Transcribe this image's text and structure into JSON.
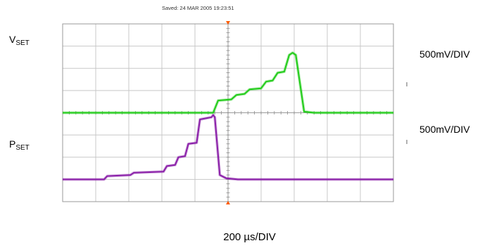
{
  "header": {
    "saved_text": "Saved:  24 MAR 2005  19:23:51"
  },
  "labels": {
    "vset_main": "V",
    "vset_sub": "SET",
    "pset_main": "P",
    "pset_sub": "SET",
    "v_scale": "500mV/DIV",
    "p_scale": "500mV/DIV",
    "time_scale": "200 µs/DIV"
  },
  "colors": {
    "vset_trace": "#22cc1a",
    "pset_trace": "#8a1fa8",
    "grid": "#c8c8c8",
    "frame": "#9a9a9a",
    "trigger_marker": "#ff5a00"
  },
  "chart_data": {
    "type": "line",
    "title": "",
    "xlabel": "200 µs/DIV",
    "ylabel": "",
    "x_divisions": 10,
    "y_divisions": 8,
    "grid": true,
    "xlim": [
      0,
      10
    ],
    "ylim": [
      0,
      8
    ],
    "series": [
      {
        "name": "VSET",
        "color": "#22cc1a",
        "points": [
          [
            0,
            4.0
          ],
          [
            4.55,
            4.0
          ],
          [
            4.7,
            4.55
          ],
          [
            5.1,
            4.6
          ],
          [
            5.25,
            4.8
          ],
          [
            5.5,
            4.85
          ],
          [
            5.65,
            5.05
          ],
          [
            6.0,
            5.1
          ],
          [
            6.15,
            5.4
          ],
          [
            6.35,
            5.45
          ],
          [
            6.5,
            5.8
          ],
          [
            6.7,
            5.85
          ],
          [
            6.85,
            6.6
          ],
          [
            6.95,
            6.7
          ],
          [
            7.05,
            6.6
          ],
          [
            7.3,
            4.05
          ],
          [
            7.6,
            4.0
          ],
          [
            10,
            4.0
          ]
        ]
      },
      {
        "name": "PSET",
        "color": "#8a1fa8",
        "points": [
          [
            0,
            1.0
          ],
          [
            1.25,
            1.0
          ],
          [
            1.35,
            1.15
          ],
          [
            2.05,
            1.2
          ],
          [
            2.15,
            1.3
          ],
          [
            3.05,
            1.35
          ],
          [
            3.15,
            1.6
          ],
          [
            3.4,
            1.65
          ],
          [
            3.5,
            2.0
          ],
          [
            3.7,
            2.05
          ],
          [
            3.8,
            2.6
          ],
          [
            4.05,
            2.65
          ],
          [
            4.15,
            3.7
          ],
          [
            4.5,
            3.8
          ],
          [
            4.55,
            3.9
          ],
          [
            4.6,
            3.8
          ],
          [
            4.75,
            1.2
          ],
          [
            4.95,
            1.05
          ],
          [
            5.3,
            1.0
          ],
          [
            10,
            1.0
          ]
        ]
      }
    ]
  }
}
